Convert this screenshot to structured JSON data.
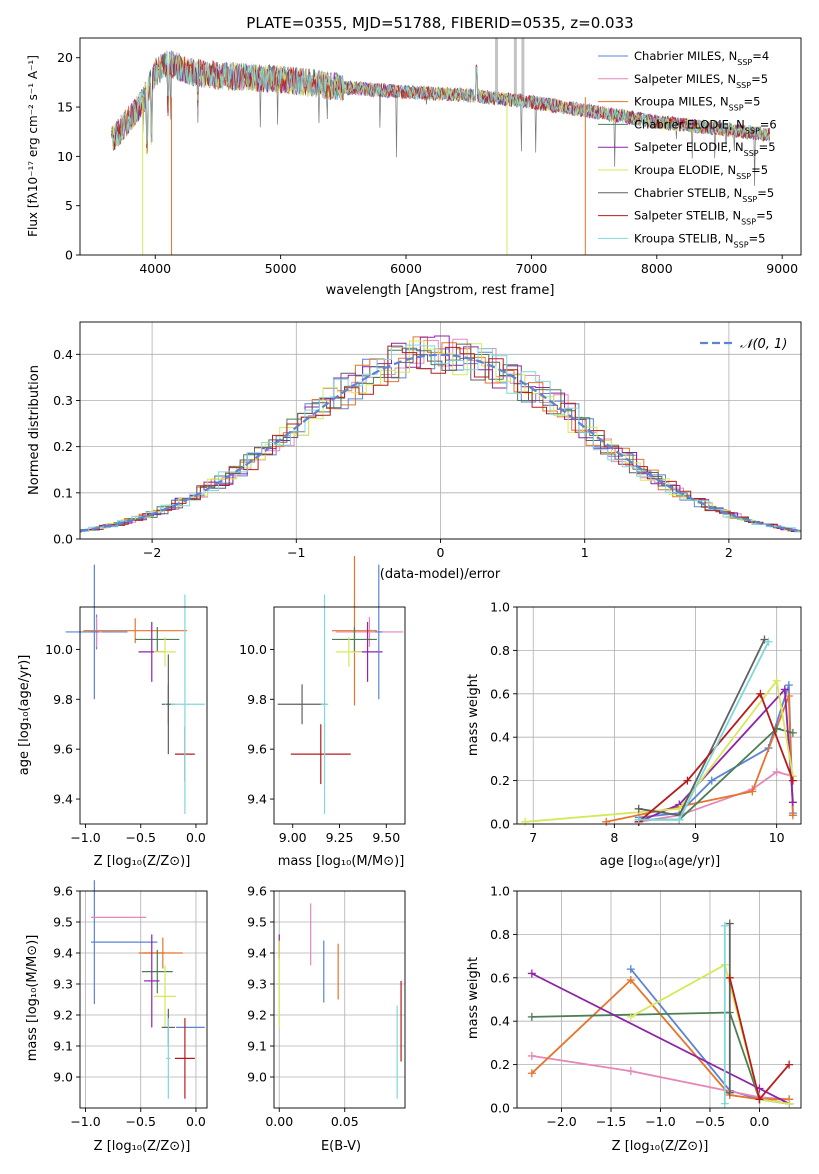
{
  "colors": [
    "#5b83d6",
    "#e587b9",
    "#e6742a",
    "#4b7f53",
    "#8e24aa",
    "#d7e85a",
    "#616161",
    "#b71c1c",
    "#7fd8dc"
  ],
  "spectrum": {
    "title": "PLATE=0355, MJD=51788, FIBERID=0535, z=0.033",
    "xlabel": "wavelength [Angstrom, rest frame]",
    "ylabel": "Flux [fλ10⁻¹⁷ erg cm⁻² s⁻¹ A⁻¹]",
    "legend": [
      "Chabrier MILES, N_SSP=4",
      "Salpeter MILES, N_SSP=5",
      "Kroupa MILES, N_SSP=5",
      "Chabrier ELODIE, N_SSP=6",
      "Salpeter ELODIE, N_SSP=5",
      "Kroupa ELODIE, N_SSP=5",
      "Chabrier STELIB, N_SSP=5",
      "Salpeter STELIB, N_SSP=5",
      "Kroupa STELIB, N_SSP=5"
    ]
  },
  "hist": {
    "xlabel": "(data-model)/error",
    "ylabel": "Normed distribution",
    "legend": "𝒩(0, 1)"
  },
  "p1": {
    "xlabel": "Z [log₁₀(Z/Z⊙)]",
    "ylabel": "age  [log₁₀(age/yr)]"
  },
  "p2": {
    "xlabel": "mass [log₁₀(M/M⊙)]"
  },
  "p3": {
    "xlabel": "age  [log₁₀(age/yr)]",
    "ylabel": "mass weight"
  },
  "p4": {
    "xlabel": "Z [log₁₀(Z/Z⊙)]",
    "ylabel": "mass [log₁₀(M/M⊙)]"
  },
  "p5": {
    "xlabel": "E(B-V)"
  },
  "p6": {
    "xlabel": "Z [log₁₀(Z/Z⊙)]",
    "ylabel": "mass weight"
  },
  "chart_data": [
    {
      "type": "line",
      "title": "PLATE=0355, MJD=51788, FIBERID=0535, z=0.033",
      "xlim": [
        3400,
        9150
      ],
      "ylim": [
        0,
        22
      ],
      "xticks": [
        4000,
        5000,
        6000,
        7000,
        8000,
        9000
      ],
      "yticks": [
        0,
        5,
        10,
        15,
        20
      ],
      "grid": false,
      "legend_position": "top-right",
      "series_names": [
        "Chabrier MILES, N_SSP=4",
        "Salpeter MILES, N_SSP=5",
        "Kroupa MILES, N_SSP=5",
        "Chabrier ELODIE, N_SSP=6",
        "Salpeter ELODIE, N_SSP=5",
        "Kroupa ELODIE, N_SSP=5",
        "Chabrier STELIB, N_SSP=5",
        "Salpeter STELIB, N_SSP=5",
        "Kroupa STELIB, N_SSP=5"
      ],
      "data_envelope": {
        "x": [
          3650,
          3900,
          4000,
          4100,
          4300,
          4500,
          5000,
          5500,
          6000,
          6500,
          7000,
          7500,
          8000,
          8500,
          8900
        ],
        "y": [
          11.5,
          15.5,
          18.5,
          19.5,
          18.5,
          18.2,
          17.8,
          17.0,
          16.5,
          16.2,
          15.5,
          14.5,
          13.5,
          12.8,
          12.2
        ]
      }
    },
    {
      "type": "bar",
      "xlim": [
        -2.5,
        2.5
      ],
      "ylim": [
        0,
        0.47
      ],
      "xticks": [
        -2,
        -1,
        0,
        1,
        2
      ],
      "yticks": [
        0.0,
        0.1,
        0.2,
        0.3,
        0.4
      ],
      "grid": true,
      "legend_position": "top-right",
      "bin_width": 0.1,
      "reference_curve": "N(0,1)"
    },
    {
      "type": "scatter",
      "xlim": [
        -1.05,
        0.1
      ],
      "ylim": [
        9.3,
        10.17
      ],
      "xticks": [
        -1.0,
        -0.5,
        0.0
      ],
      "yticks": [
        9.4,
        9.6,
        9.8,
        10.0
      ],
      "points": [
        {
          "x": -0.9,
          "y": 10.07,
          "xerr": 0.3,
          "yerr": 0.07
        },
        {
          "x": -0.37,
          "y": 9.99,
          "xerr": 0.13,
          "yerr": 0.12
        },
        {
          "x": -0.3,
          "y": 10.04,
          "xerr": 0.16,
          "yerr": 0.17
        },
        {
          "x": -0.25,
          "y": 9.78,
          "xerr": 0.1,
          "yerr": 0.2
        },
        {
          "x": -0.1,
          "y": 9.58,
          "xerr": 0.1,
          "yerr": 0.12
        }
      ]
    },
    {
      "type": "scatter",
      "xlim": [
        8.9,
        9.6
      ],
      "ylim": [
        9.3,
        10.17
      ],
      "xticks": [
        9.0,
        9.25,
        9.5
      ],
      "yticks": [
        9.4,
        9.6,
        9.8,
        10.0
      ]
    },
    {
      "type": "line",
      "xlim": [
        6.8,
        10.3
      ],
      "ylim": [
        0,
        1
      ],
      "xticks": [
        7,
        8,
        9,
        10
      ],
      "yticks": [
        0.0,
        0.2,
        0.4,
        0.6,
        0.8,
        1.0
      ],
      "grid": true
    },
    {
      "type": "scatter",
      "xlim": [
        -1.05,
        0.1
      ],
      "ylim": [
        8.9,
        9.6
      ],
      "xticks": [
        -1.0,
        -0.5,
        0.0
      ],
      "yticks": [
        9.0,
        9.1,
        9.2,
        9.3,
        9.4,
        9.5,
        9.6
      ],
      "grid": true
    },
    {
      "type": "scatter",
      "xlim": [
        -0.004,
        0.096
      ],
      "ylim": [
        8.9,
        9.6
      ],
      "xticks": [
        0.0,
        0.05
      ],
      "yticks": [
        9.0,
        9.1,
        9.2,
        9.3,
        9.4,
        9.5,
        9.6
      ],
      "grid": true
    },
    {
      "type": "line",
      "xlim": [
        -2.45,
        0.42
      ],
      "ylim": [
        0,
        1
      ],
      "xticks": [
        -2.0,
        -1.5,
        -1.0,
        -0.5,
        0.0
      ],
      "yticks": [
        0.0,
        0.2,
        0.4,
        0.6,
        0.8,
        1.0
      ],
      "grid": true
    }
  ]
}
